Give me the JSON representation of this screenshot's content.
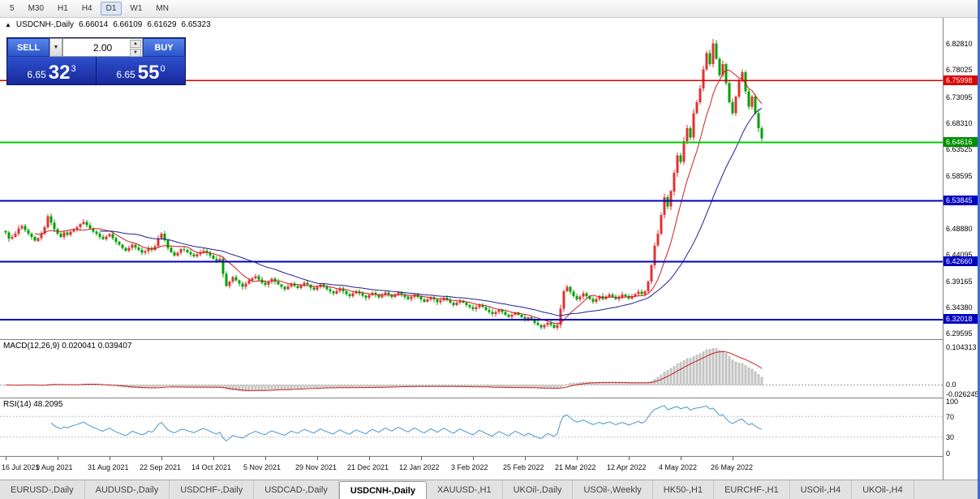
{
  "timeframe_bar": {
    "items": [
      "5",
      "M30",
      "H1",
      "H4",
      "D1",
      "W1",
      "MN"
    ],
    "active": "D1"
  },
  "chart_header": {
    "marker": "▲",
    "symbol": "USDCNH-,Daily",
    "open": "6.66014",
    "high": "6.66109",
    "low": "6.61629",
    "close": "6.65323"
  },
  "trade_widget": {
    "sell_label": "SELL",
    "buy_label": "BUY",
    "volume": "2.00",
    "dropdown_icon": "▼",
    "spin_up_icon": "▲",
    "spin_down_icon": "▼",
    "sell_small": "6.65",
    "sell_big": "32",
    "sell_sup": "3",
    "buy_small": "6.65",
    "buy_big": "55",
    "buy_sup": "0"
  },
  "price_axis": {
    "ticks": [
      {
        "label": "6.82810",
        "price": 6.8281
      },
      {
        "label": "6.78025",
        "price": 6.78025
      },
      {
        "label": "6.73095",
        "price": 6.73095
      },
      {
        "label": "6.68310",
        "price": 6.6831
      },
      {
        "label": "6.63525",
        "price": 6.63525
      },
      {
        "label": "6.58595",
        "price": 6.58595
      },
      {
        "label": "6.48880",
        "price": 6.4888
      },
      {
        "label": "6.44095",
        "price": 6.44095
      },
      {
        "label": "6.39165",
        "price": 6.39165
      },
      {
        "label": "6.34380",
        "price": 6.3438
      },
      {
        "label": "6.29595",
        "price": 6.29595
      }
    ],
    "badges": [
      {
        "label": "6.75998",
        "price": 6.75998,
        "color": "#DD0000"
      },
      {
        "label": "6.64616",
        "price": 6.64616,
        "color": "#009000"
      },
      {
        "label": "6.53845",
        "price": 6.53845,
        "color": "#0000C0"
      },
      {
        "label": "6.42660",
        "price": 6.4266,
        "color": "#0000C0"
      },
      {
        "label": "6.32018",
        "price": 6.32018,
        "color": "#0000C0"
      }
    ]
  },
  "macd_panel": {
    "label": "MACD(12,26,9) 0.020041 0.039407",
    "axis_labels": [
      {
        "text": "0.104313",
        "value": 0.104313
      },
      {
        "text": "0.0",
        "value": 0.0
      },
      {
        "text": "-0.026245",
        "value": -0.026245
      }
    ]
  },
  "rsi_panel": {
    "label": "RSI(14) 48.2095",
    "axis_labels": [
      {
        "text": "100",
        "value": 100
      },
      {
        "text": "70",
        "value": 70
      },
      {
        "text": "30",
        "value": 30
      },
      {
        "text": "0",
        "value": 0
      }
    ],
    "dotted_levels": [
      70,
      30
    ]
  },
  "x_axis": {
    "labels": [
      "16 Jul 2021",
      "9 Aug 2021",
      "31 Aug 2021",
      "22 Sep 2021",
      "14 Oct 2021",
      "5 Nov 2021",
      "29 Nov 2021",
      "21 Dec 2021",
      "12 Jan 2022",
      "3 Feb 2022",
      "25 Feb 2022",
      "21 Mar 2022",
      "12 Apr 2022",
      "4 May 2022",
      "26 May 2022"
    ],
    "bars_per_label": 16
  },
  "tabs": {
    "items": [
      "EURUSD-,Daily",
      "AUDUSD-,Daily",
      "USDCHF-,Daily",
      "USDCAD-,Daily",
      "USDCNH-,Daily",
      "XAUUSD-,H1",
      "UKOil-,Daily",
      "USOil-,Weekly",
      "HK50-,H1",
      "EURCHF-,H1",
      "USOil-,H4",
      "UKOil-,H4"
    ],
    "active": "USDCNH-,Daily"
  },
  "chart_data": {
    "type": "candlestick",
    "symbol": "USDCNH",
    "timeframe": "Daily",
    "ohlc_display": {
      "open": 6.66014,
      "high": 6.66109,
      "low": 6.61629,
      "close": 6.65323
    },
    "y_range": [
      6.284,
      6.875
    ],
    "candle_up_color": "#E03232",
    "candle_down_color": "#00A000",
    "closes": [
      6.48,
      6.469,
      6.472,
      6.478,
      6.488,
      6.492,
      6.485,
      6.478,
      6.472,
      6.465,
      6.47,
      6.478,
      6.49,
      6.51,
      6.498,
      6.486,
      6.478,
      6.472,
      6.48,
      6.476,
      6.482,
      6.486,
      6.49,
      6.496,
      6.5,
      6.494,
      6.488,
      6.482,
      6.478,
      6.472,
      6.468,
      6.473,
      6.477,
      6.47,
      6.463,
      6.458,
      6.452,
      6.447,
      6.452,
      6.458,
      6.453,
      6.448,
      6.443,
      6.446,
      6.452,
      6.448,
      6.455,
      6.47,
      6.478,
      6.466,
      6.452,
      6.444,
      6.438,
      6.443,
      6.45,
      6.448,
      6.444,
      6.44,
      6.436,
      6.44,
      6.444,
      6.447,
      6.443,
      6.438,
      6.432,
      6.428,
      6.432,
      6.404,
      6.382,
      6.39,
      6.398,
      6.392,
      6.386,
      6.38,
      6.386,
      6.392,
      6.396,
      6.4,
      6.394,
      6.388,
      6.384,
      6.39,
      6.395,
      6.39,
      6.385,
      6.38,
      6.376,
      6.381,
      6.386,
      6.382,
      6.378,
      6.383,
      6.388,
      6.384,
      6.379,
      6.375,
      6.38,
      6.385,
      6.38,
      6.376,
      6.372,
      6.368,
      6.373,
      6.377,
      6.372,
      6.367,
      6.363,
      6.368,
      6.372,
      6.368,
      6.364,
      6.36,
      6.365,
      6.369,
      6.365,
      6.361,
      6.366,
      6.37,
      6.366,
      6.362,
      6.366,
      6.37,
      6.366,
      6.362,
      6.358,
      6.362,
      6.366,
      6.362,
      6.357,
      6.353,
      6.357,
      6.361,
      6.357,
      6.352,
      6.356,
      6.36,
      6.356,
      6.351,
      6.347,
      6.351,
      6.355,
      6.351,
      6.347,
      6.343,
      6.339,
      6.343,
      6.347,
      6.343,
      6.338,
      6.334,
      6.33,
      6.334,
      6.338,
      6.334,
      6.329,
      6.325,
      6.329,
      6.333,
      6.329,
      6.324,
      6.32,
      6.324,
      6.32,
      6.314,
      6.31,
      6.306,
      6.31,
      6.314,
      6.31,
      6.305,
      6.31,
      6.34,
      6.372,
      6.38,
      6.371,
      6.363,
      6.357,
      6.362,
      6.368,
      6.363,
      6.358,
      6.353,
      6.358,
      6.363,
      6.358,
      6.362,
      6.366,
      6.362,
      6.358,
      6.362,
      6.366,
      6.363,
      6.359,
      6.363,
      6.367,
      6.371,
      6.367,
      6.372,
      6.39,
      6.42,
      6.456,
      6.478,
      6.512,
      6.545,
      6.528,
      6.556,
      6.59,
      6.622,
      6.61,
      6.648,
      6.672,
      6.655,
      6.7,
      6.72,
      6.745,
      6.78,
      6.81,
      6.79,
      6.828,
      6.8,
      6.77,
      6.79,
      6.755,
      6.72,
      6.7,
      6.73,
      6.76,
      6.775,
      6.74,
      6.712,
      6.73,
      6.7,
      6.672,
      6.6532
    ],
    "moving_averages": [
      {
        "period": 10,
        "color": "#CC2020"
      },
      {
        "period": 30,
        "color": "#202090"
      }
    ],
    "hlines": [
      {
        "price": 6.75998,
        "color": "#DD0000",
        "width": 1.5
      },
      {
        "price": 6.64616,
        "color": "#00CC00",
        "width": 2
      },
      {
        "price": 6.53845,
        "color": "#0000C0",
        "width": 2
      },
      {
        "price": 6.4266,
        "color": "#0000C0",
        "width": 2
      },
      {
        "price": 6.32018,
        "color": "#0000C0",
        "width": 2
      }
    ],
    "indicators": {
      "macd": {
        "fast": 12,
        "slow": 26,
        "signal": 9,
        "current": "0.020041 0.039407",
        "bar_color": "#C4C4C4",
        "signal_color": "#CC2020",
        "range": [
          -0.035,
          0.125
        ]
      },
      "rsi": {
        "period": 14,
        "current": 48.2095,
        "color": "#4A96CE",
        "range": [
          0,
          100
        ]
      }
    }
  }
}
